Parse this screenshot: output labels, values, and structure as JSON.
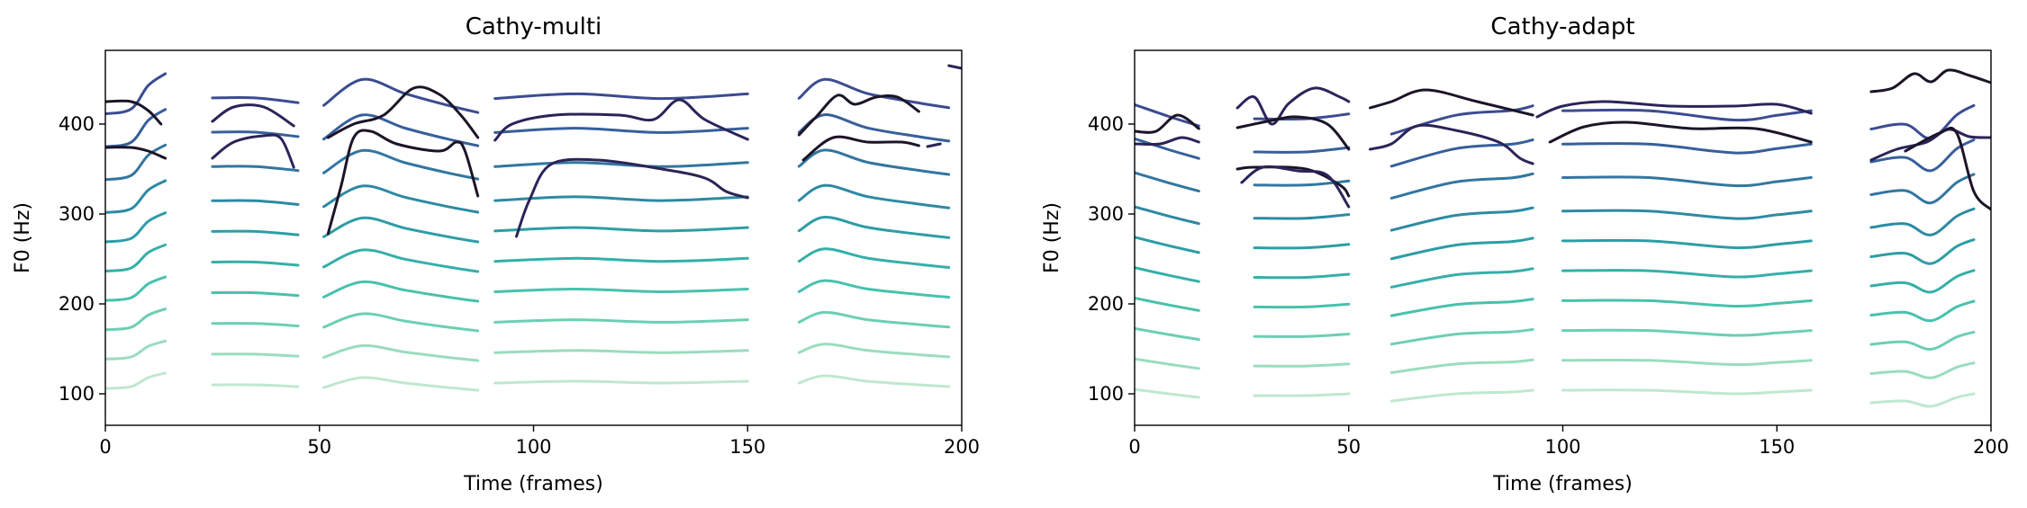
{
  "chart_data": [
    {
      "type": "line",
      "title": "Cathy-multi",
      "xlabel": "Time (frames)",
      "ylabel": "F0 (Hz)",
      "xlim": [
        0,
        200
      ],
      "ylim": [
        65,
        482
      ],
      "xticks": [
        0,
        50,
        100,
        150,
        200
      ],
      "yticks": [
        100,
        200,
        300,
        400
      ],
      "grid": false,
      "palette": [
        "#bfe8cf",
        "#9adcbf",
        "#6ccfb3",
        "#48c1ad",
        "#35afa8",
        "#2d9da6",
        "#2d8aa3",
        "#3276a0",
        "#375f9b",
        "#3b4c91",
        "#3a3b80",
        "#33306e",
        "#2b2458",
        "#231a40",
        "#1c1428"
      ],
      "segments": [
        [
          0,
          14
        ],
        [
          25,
          45
        ],
        [
          51,
          87
        ],
        [
          91,
          150
        ],
        [
          162,
          197
        ]
      ],
      "harmonic_spacing": 34,
      "series_base": [
        [
          [
            0,
            106
          ],
          [
            6,
            108
          ],
          [
            10,
            118
          ],
          [
            14,
            123
          ]
        ],
        [
          [
            25,
            110
          ],
          [
            35,
            110
          ],
          [
            45,
            108
          ]
        ],
        [
          [
            51,
            107
          ],
          [
            60,
            118
          ],
          [
            70,
            112
          ],
          [
            80,
            107
          ],
          [
            87,
            104
          ]
        ],
        [
          [
            91,
            112
          ],
          [
            110,
            114
          ],
          [
            130,
            112
          ],
          [
            150,
            114
          ]
        ],
        [
          [
            162,
            112
          ],
          [
            168,
            120
          ],
          [
            178,
            114
          ],
          [
            190,
            110
          ],
          [
            197,
            108
          ]
        ]
      ],
      "series": [
        {
          "values": [
            [
              0,
              425
            ],
            [
              6,
              425
            ],
            [
              10,
              415
            ],
            [
              13,
              400
            ]
          ]
        },
        {
          "values": [
            [
              25,
              403
            ],
            [
              30,
              419
            ],
            [
              37,
              419
            ],
            [
              44,
              398
            ]
          ]
        },
        {
          "values": [
            [
              52,
              385
            ],
            [
              58,
              400
            ],
            [
              65,
              410
            ],
            [
              72,
              440
            ],
            [
              78,
              433
            ],
            [
              83,
              410
            ],
            [
              87,
              385
            ]
          ]
        },
        {
          "values": [
            [
              91,
              382
            ],
            [
              95,
              400
            ],
            [
              105,
              410
            ],
            [
              120,
              410
            ],
            [
              128,
              405
            ],
            [
              134,
              427
            ],
            [
              140,
              405
            ],
            [
              150,
              383
            ]
          ]
        },
        {
          "values": [
            [
              162,
              388
            ],
            [
              166,
              408
            ],
            [
              171,
              432
            ],
            [
              175,
              422
            ],
            [
              180,
              430
            ],
            [
              185,
              430
            ],
            [
              190,
              414
            ]
          ]
        },
        {
          "values": [
            [
              197,
              465
            ],
            [
              200,
              462
            ]
          ]
        },
        {
          "values": [
            [
              0,
              374
            ],
            [
              6,
              374
            ],
            [
              10,
              370
            ],
            [
              14,
              362
            ]
          ]
        },
        {
          "values": [
            [
              25,
              362
            ],
            [
              30,
              380
            ],
            [
              37,
              387
            ],
            [
              41,
              384
            ],
            [
              44,
              352
            ]
          ]
        },
        {
          "values": [
            [
              52,
              278
            ],
            [
              55,
              330
            ],
            [
              58,
              385
            ],
            [
              62,
              392
            ],
            [
              68,
              378
            ],
            [
              78,
              370
            ],
            [
              82,
              380
            ],
            [
              84,
              370
            ],
            [
              87,
              320
            ]
          ]
        },
        {
          "values": [
            [
              96,
              275
            ],
            [
              99,
              315
            ],
            [
              104,
              355
            ],
            [
              115,
              360
            ],
            [
              130,
              350
            ],
            [
              140,
              340
            ],
            [
              145,
              325
            ],
            [
              150,
              318
            ]
          ]
        },
        {
          "values": [
            [
              163,
              360
            ],
            [
              170,
              385
            ],
            [
              178,
              380
            ],
            [
              186,
              380
            ],
            [
              190,
              376
            ]
          ]
        },
        {
          "values": [
            [
              192,
              375
            ],
            [
              195,
              378
            ]
          ]
        }
      ]
    },
    {
      "type": "line",
      "title": "Cathy-adapt",
      "xlabel": "Time (frames)",
      "ylabel": "F0 (Hz)",
      "xlim": [
        0,
        200
      ],
      "ylim": [
        65,
        482
      ],
      "xticks": [
        0,
        50,
        100,
        150,
        200
      ],
      "yticks": [
        100,
        200,
        300,
        400
      ],
      "grid": false,
      "palette": [
        "#bfe8cf",
        "#9adcbf",
        "#6ccfb3",
        "#48c1ad",
        "#35afa8",
        "#2d9da6",
        "#2d8aa3",
        "#3276a0",
        "#375f9b",
        "#3b4c91",
        "#3a3b80",
        "#33306e",
        "#2b2458",
        "#231a40",
        "#1c1428"
      ],
      "segments": [
        [
          0,
          15
        ],
        [
          22,
          50
        ],
        [
          55,
          93
        ],
        [
          94,
          158
        ],
        [
          172,
          200
        ]
      ],
      "harmonic_spacing": 33,
      "series_base": [
        [
          [
            0,
            105
          ],
          [
            8,
            100
          ],
          [
            15,
            96
          ]
        ],
        [
          [
            28,
            98
          ],
          [
            40,
            98
          ],
          [
            50,
            100
          ]
        ],
        [
          [
            60,
            92
          ],
          [
            75,
            100
          ],
          [
            88,
            102
          ],
          [
            93,
            104
          ]
        ],
        [
          [
            100,
            104
          ],
          [
            120,
            104
          ],
          [
            140,
            100
          ],
          [
            150,
            102
          ],
          [
            158,
            104
          ]
        ],
        [
          [
            172,
            90
          ],
          [
            180,
            92
          ],
          [
            186,
            86
          ],
          [
            192,
            96
          ],
          [
            196,
            100
          ]
        ]
      ],
      "series": [
        {
          "values": [
            [
              0,
              392
            ],
            [
              5,
              392
            ],
            [
              10,
              410
            ],
            [
              15,
              395
            ]
          ]
        },
        {
          "values": [
            [
              24,
              418
            ],
            [
              28,
              430
            ],
            [
              32,
              400
            ],
            [
              36,
              423
            ],
            [
              42,
              440
            ],
            [
              48,
              430
            ],
            [
              50,
              425
            ]
          ]
        },
        {
          "values": [
            [
              55,
              418
            ],
            [
              60,
              425
            ],
            [
              68,
              438
            ],
            [
              80,
              425
            ],
            [
              93,
              410
            ]
          ]
        },
        {
          "values": [
            [
              94,
              408
            ],
            [
              100,
              420
            ],
            [
              110,
              425
            ],
            [
              125,
              420
            ],
            [
              140,
              420
            ],
            [
              150,
              422
            ],
            [
              158,
              412
            ]
          ]
        },
        {
          "values": [
            [
              172,
              436
            ],
            [
              177,
              440
            ],
            [
              182,
              456
            ],
            [
              186,
              447
            ],
            [
              190,
              460
            ],
            [
              195,
              454
            ],
            [
              200,
              446
            ]
          ]
        },
        {
          "values": [
            [
              0,
              378
            ],
            [
              6,
              378
            ],
            [
              11,
              385
            ],
            [
              15,
              380
            ]
          ]
        },
        {
          "values": [
            [
              24,
              396
            ],
            [
              32,
              404
            ],
            [
              38,
              408
            ],
            [
              45,
              400
            ],
            [
              50,
              372
            ]
          ]
        },
        {
          "values": [
            [
              55,
              372
            ],
            [
              60,
              378
            ],
            [
              66,
              398
            ],
            [
              75,
              393
            ],
            [
              85,
              380
            ],
            [
              90,
              362
            ],
            [
              93,
              356
            ]
          ]
        },
        {
          "values": [
            [
              97,
              380
            ],
            [
              105,
              397
            ],
            [
              115,
              402
            ],
            [
              130,
              395
            ],
            [
              145,
              395
            ],
            [
              158,
              380
            ]
          ]
        },
        {
          "values": [
            [
              172,
              360
            ],
            [
              178,
              372
            ],
            [
              185,
              380
            ],
            [
              190,
              394
            ],
            [
              195,
              386
            ],
            [
              200,
              385
            ]
          ]
        },
        {
          "values": [
            [
              24,
              350
            ],
            [
              28,
              352
            ],
            [
              40,
              350
            ],
            [
              48,
              332
            ],
            [
              50,
              320
            ]
          ]
        },
        {
          "values": [
            [
              25,
              335
            ],
            [
              30,
              352
            ],
            [
              38,
              348
            ],
            [
              45,
              343
            ],
            [
              50,
              308
            ]
          ]
        },
        {
          "values": [
            [
              180,
              370
            ],
            [
              188,
              390
            ],
            [
              192,
              390
            ],
            [
              196,
              325
            ],
            [
              200,
              305
            ]
          ]
        }
      ]
    }
  ]
}
